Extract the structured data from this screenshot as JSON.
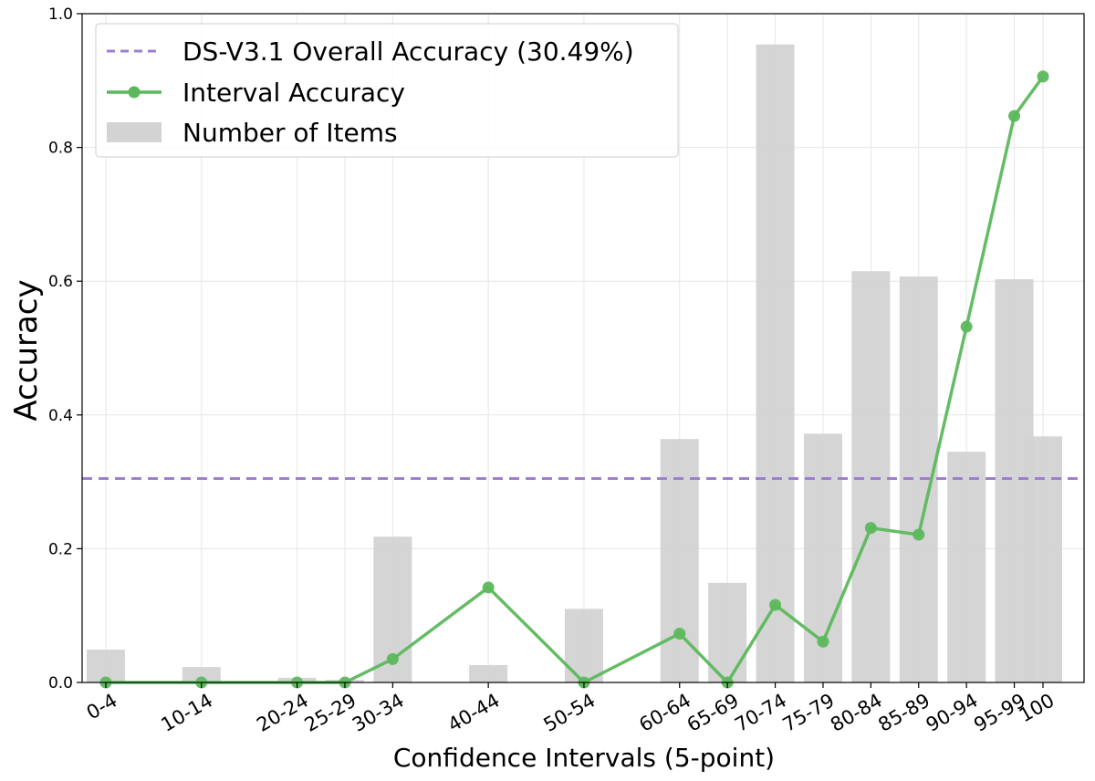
{
  "chart_data": {
    "type": "bar+line",
    "title": "",
    "xlabel": "Confidence Intervals (5-point)",
    "ylabel": "Accuracy",
    "ylim": [
      0,
      1.0
    ],
    "yticks": [
      "0.0",
      "0.2",
      "0.4",
      "0.6",
      "0.8",
      "1.0"
    ],
    "grid": true,
    "legend_position": "upper left",
    "categories": [
      "0-4",
      "10-14",
      "20-24",
      "25-29",
      "30-34",
      "40-44",
      "50-54",
      "60-64",
      "65-69",
      "70-74",
      "75-79",
      "80-84",
      "85-89",
      "90-94",
      "95-99",
      "100"
    ],
    "x_positions": [
      2,
      12,
      22,
      27,
      32,
      42,
      52,
      62,
      67,
      72,
      77,
      82,
      87,
      92,
      97,
      100
    ],
    "series": [
      {
        "name": "Interval Accuracy",
        "type": "line",
        "color": "#5cb85c",
        "marker": "circle",
        "values": [
          0.0,
          0.0,
          0.0,
          0.0,
          0.035,
          0.142,
          0.0,
          0.073,
          0.0,
          0.116,
          0.061,
          0.231,
          0.221,
          0.532,
          0.847,
          0.906
        ]
      },
      {
        "name": "Number of Items",
        "type": "bar",
        "color": "#d3d3d3",
        "note": "normalized item counts",
        "values": [
          0.049,
          0.023,
          0.007,
          0.004,
          0.218,
          0.026,
          0.11,
          0.364,
          0.149,
          0.954,
          0.372,
          0.615,
          0.607,
          0.345,
          0.603,
          0.368
        ]
      },
      {
        "name": "DS-V3.1 Overall Accuracy (30.49%)",
        "type": "hline",
        "color": "#9b7fd4",
        "style": "dashed",
        "value": 0.3049
      }
    ]
  },
  "legend": {
    "items": [
      {
        "label": "DS-V3.1 Overall Accuracy (30.49%)",
        "kind": "dashed-line",
        "color": "#9b7fd4"
      },
      {
        "label": "Interval Accuracy",
        "kind": "line-marker",
        "color": "#5cb85c"
      },
      {
        "label": "Number of Items",
        "kind": "patch",
        "color": "#d3d3d3"
      }
    ]
  },
  "axes": {
    "x_title": "Confidence Intervals (5-point)",
    "y_title": "Accuracy"
  }
}
